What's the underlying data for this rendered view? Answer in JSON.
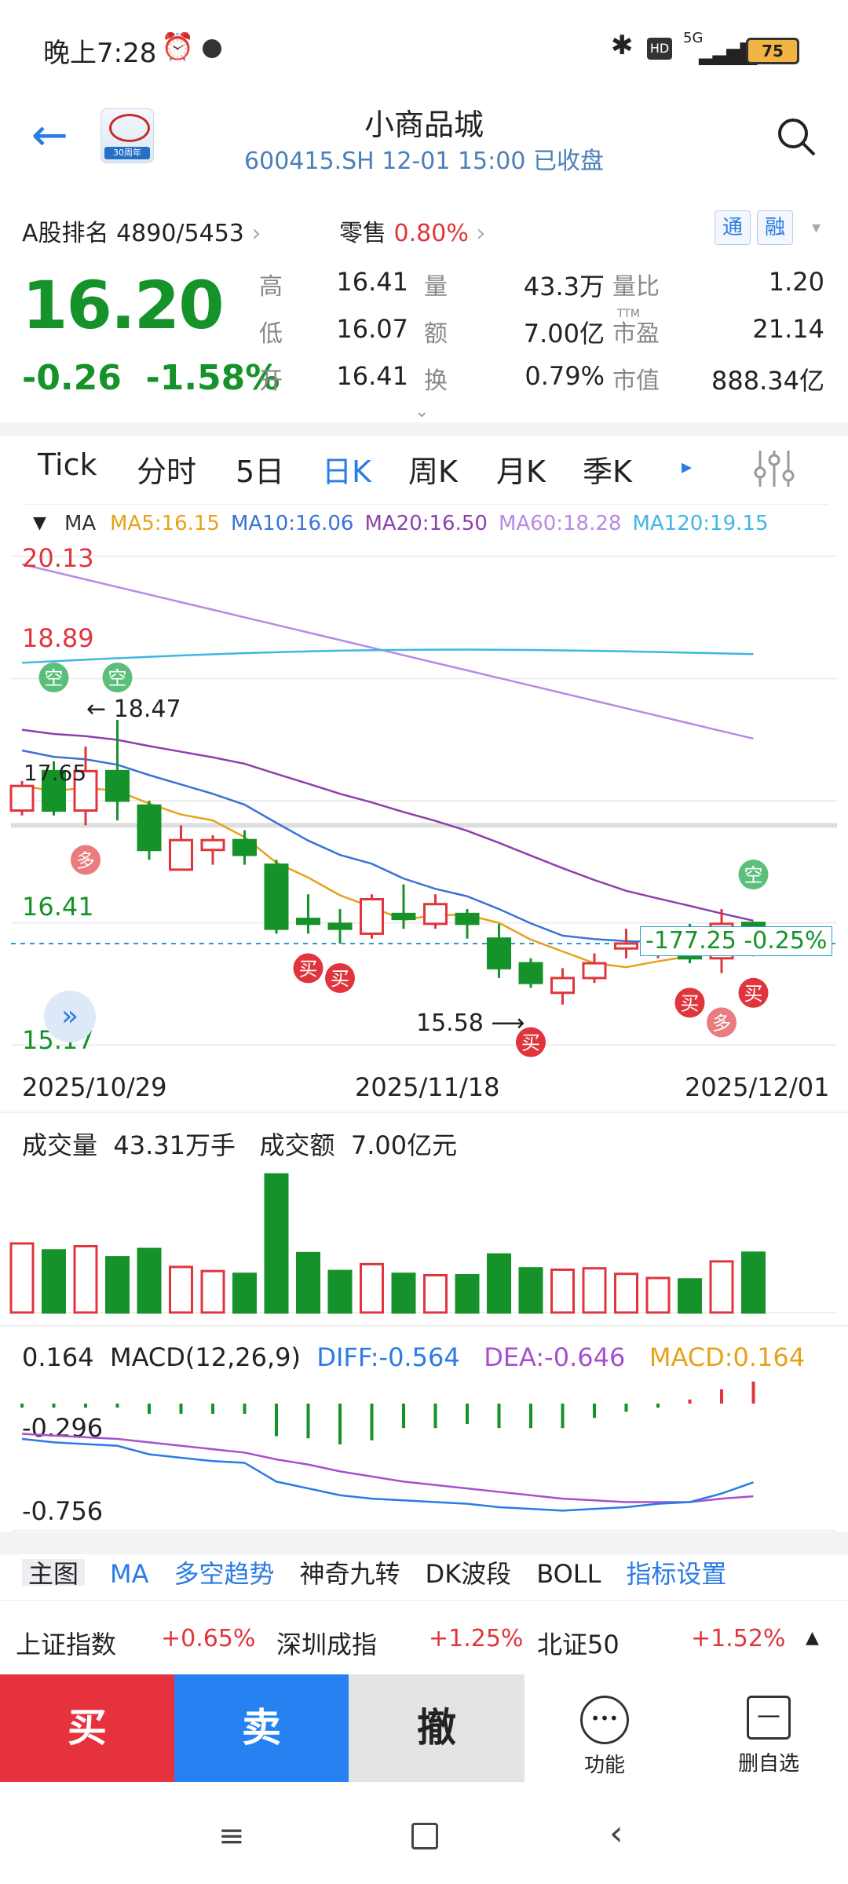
{
  "status": {
    "time": "晚上7:28",
    "network": "5G",
    "battery": "75"
  },
  "header": {
    "name": "小商品城",
    "subtitle": "600415.SH 12-01 15:00 已收盘",
    "logo_text": "30周年"
  },
  "rank": {
    "label": "A股排名",
    "value": "4890/5453",
    "sector": "零售",
    "sector_change": "0.80%",
    "chip1": "通",
    "chip2": "融"
  },
  "quote": {
    "price": "16.20",
    "change": "-0.26",
    "change_pct": "-1.58%",
    "rows": [
      {
        "k1": "高",
        "v1": "16.41",
        "k2": "量",
        "v2": "43.3万",
        "k3": "量比",
        "v3": "1.20"
      },
      {
        "k1": "低",
        "v1": "16.07",
        "k2": "额",
        "v2": "7.00亿",
        "k3": "市盈",
        "v3": "21.14"
      },
      {
        "k1": "开",
        "v1": "16.41",
        "k2": "换",
        "v2": "0.79%",
        "k3": "市值",
        "v3": "888.34亿"
      }
    ],
    "ttm": "TTM"
  },
  "tabs": [
    "Tick",
    "分时",
    "5日",
    "日K",
    "周K",
    "月K",
    "季K"
  ],
  "active_tab": "日K",
  "ma_legend": {
    "label": "MA",
    "items": [
      {
        "text": "MA5:16.15",
        "color": "#e6a21a"
      },
      {
        "text": "MA10:16.06",
        "color": "#3a72d8"
      },
      {
        "text": "MA20:16.50",
        "color": "#8e3fae"
      },
      {
        "text": "MA60:18.28",
        "color": "#b889e6"
      },
      {
        "text": "MA120:19.15",
        "color": "#3fb6e4"
      }
    ]
  },
  "kline": {
    "y_labels": [
      "20.13",
      "18.89",
      "16.41",
      "15.17"
    ],
    "price_left_label": "17.65",
    "high_marker": "18.47",
    "low_marker": "15.58",
    "cursor_label": "-177.25",
    "cursor_pct": "-0.25%",
    "dates": [
      "2025/10/29",
      "2025/11/18",
      "2025/12/01"
    ],
    "signals": {
      "kong": "空",
      "duo": "多",
      "mai": "买"
    }
  },
  "volume": {
    "label": "成交量",
    "shares": "43.31万手",
    "amount_label": "成交额",
    "amount": "7.00亿元"
  },
  "macd": {
    "value": "0.164",
    "title": "MACD(12,26,9)",
    "diff": "DIFF:-0.564",
    "dea": "DEA:-0.646",
    "macd": "MACD:0.164",
    "y1": "-0.296",
    "y2": "-0.756"
  },
  "indicator_tabs": [
    "主图",
    "MA",
    "多空趋势",
    "神奇九转",
    "DK波段",
    "BOLL",
    "指标设置"
  ],
  "indices": [
    {
      "name": "上证指数",
      "value": "+0.65%"
    },
    {
      "name": "深圳成指",
      "value": "+1.25%"
    },
    {
      "name": "北证50",
      "value": "+1.52%"
    }
  ],
  "actions": {
    "buy": "买",
    "sell": "卖",
    "cancel": "撤",
    "func": "功能",
    "remove": "删自选"
  },
  "chart_data": {
    "type": "candlestick",
    "candles": [
      {
        "o": 17.55,
        "c": 17.8,
        "h": 17.85,
        "l": 17.5
      },
      {
        "o": 17.95,
        "c": 17.55,
        "h": 18.05,
        "l": 17.5
      },
      {
        "o": 17.55,
        "c": 17.95,
        "h": 18.2,
        "l": 17.4
      },
      {
        "o": 17.95,
        "c": 17.65,
        "h": 18.47,
        "l": 17.45
      },
      {
        "o": 17.6,
        "c": 17.15,
        "h": 17.65,
        "l": 17.05
      },
      {
        "o": 16.95,
        "c": 17.25,
        "h": 17.4,
        "l": 16.95
      },
      {
        "o": 17.15,
        "c": 17.25,
        "h": 17.3,
        "l": 17.0
      },
      {
        "o": 17.25,
        "c": 17.1,
        "h": 17.35,
        "l": 17.0
      },
      {
        "o": 17.0,
        "c": 16.35,
        "h": 17.05,
        "l": 16.3
      },
      {
        "o": 16.45,
        "c": 16.4,
        "h": 16.7,
        "l": 16.3
      },
      {
        "o": 16.4,
        "c": 16.35,
        "h": 16.55,
        "l": 16.2
      },
      {
        "o": 16.3,
        "c": 16.65,
        "h": 16.7,
        "l": 16.25
      },
      {
        "o": 16.5,
        "c": 16.45,
        "h": 16.8,
        "l": 16.35
      },
      {
        "o": 16.4,
        "c": 16.6,
        "h": 16.7,
        "l": 16.35
      },
      {
        "o": 16.5,
        "c": 16.4,
        "h": 16.55,
        "l": 16.25
      },
      {
        "o": 16.25,
        "c": 15.95,
        "h": 16.4,
        "l": 15.85
      },
      {
        "o": 16.0,
        "c": 15.8,
        "h": 16.05,
        "l": 15.75
      },
      {
        "o": 15.7,
        "c": 15.85,
        "h": 15.95,
        "l": 15.58
      },
      {
        "o": 15.85,
        "c": 16.0,
        "h": 16.1,
        "l": 15.8
      },
      {
        "o": 16.15,
        "c": 16.2,
        "h": 16.35,
        "l": 16.05
      },
      {
        "o": 16.1,
        "c": 16.25,
        "h": 16.3,
        "l": 16.05
      },
      {
        "o": 16.3,
        "c": 16.05,
        "h": 16.4,
        "l": 16.0
      },
      {
        "o": 16.05,
        "c": 16.4,
        "h": 16.55,
        "l": 15.9
      },
      {
        "o": 16.41,
        "c": 16.2,
        "h": 16.41,
        "l": 16.07
      }
    ],
    "volume": [
      50,
      45,
      48,
      40,
      46,
      33,
      30,
      28,
      100,
      43,
      30,
      35,
      28,
      27,
      27,
      42,
      32,
      31,
      32,
      28,
      25,
      24,
      37,
      43.3
    ],
    "ylim": [
      15.1,
      20.2
    ]
  }
}
